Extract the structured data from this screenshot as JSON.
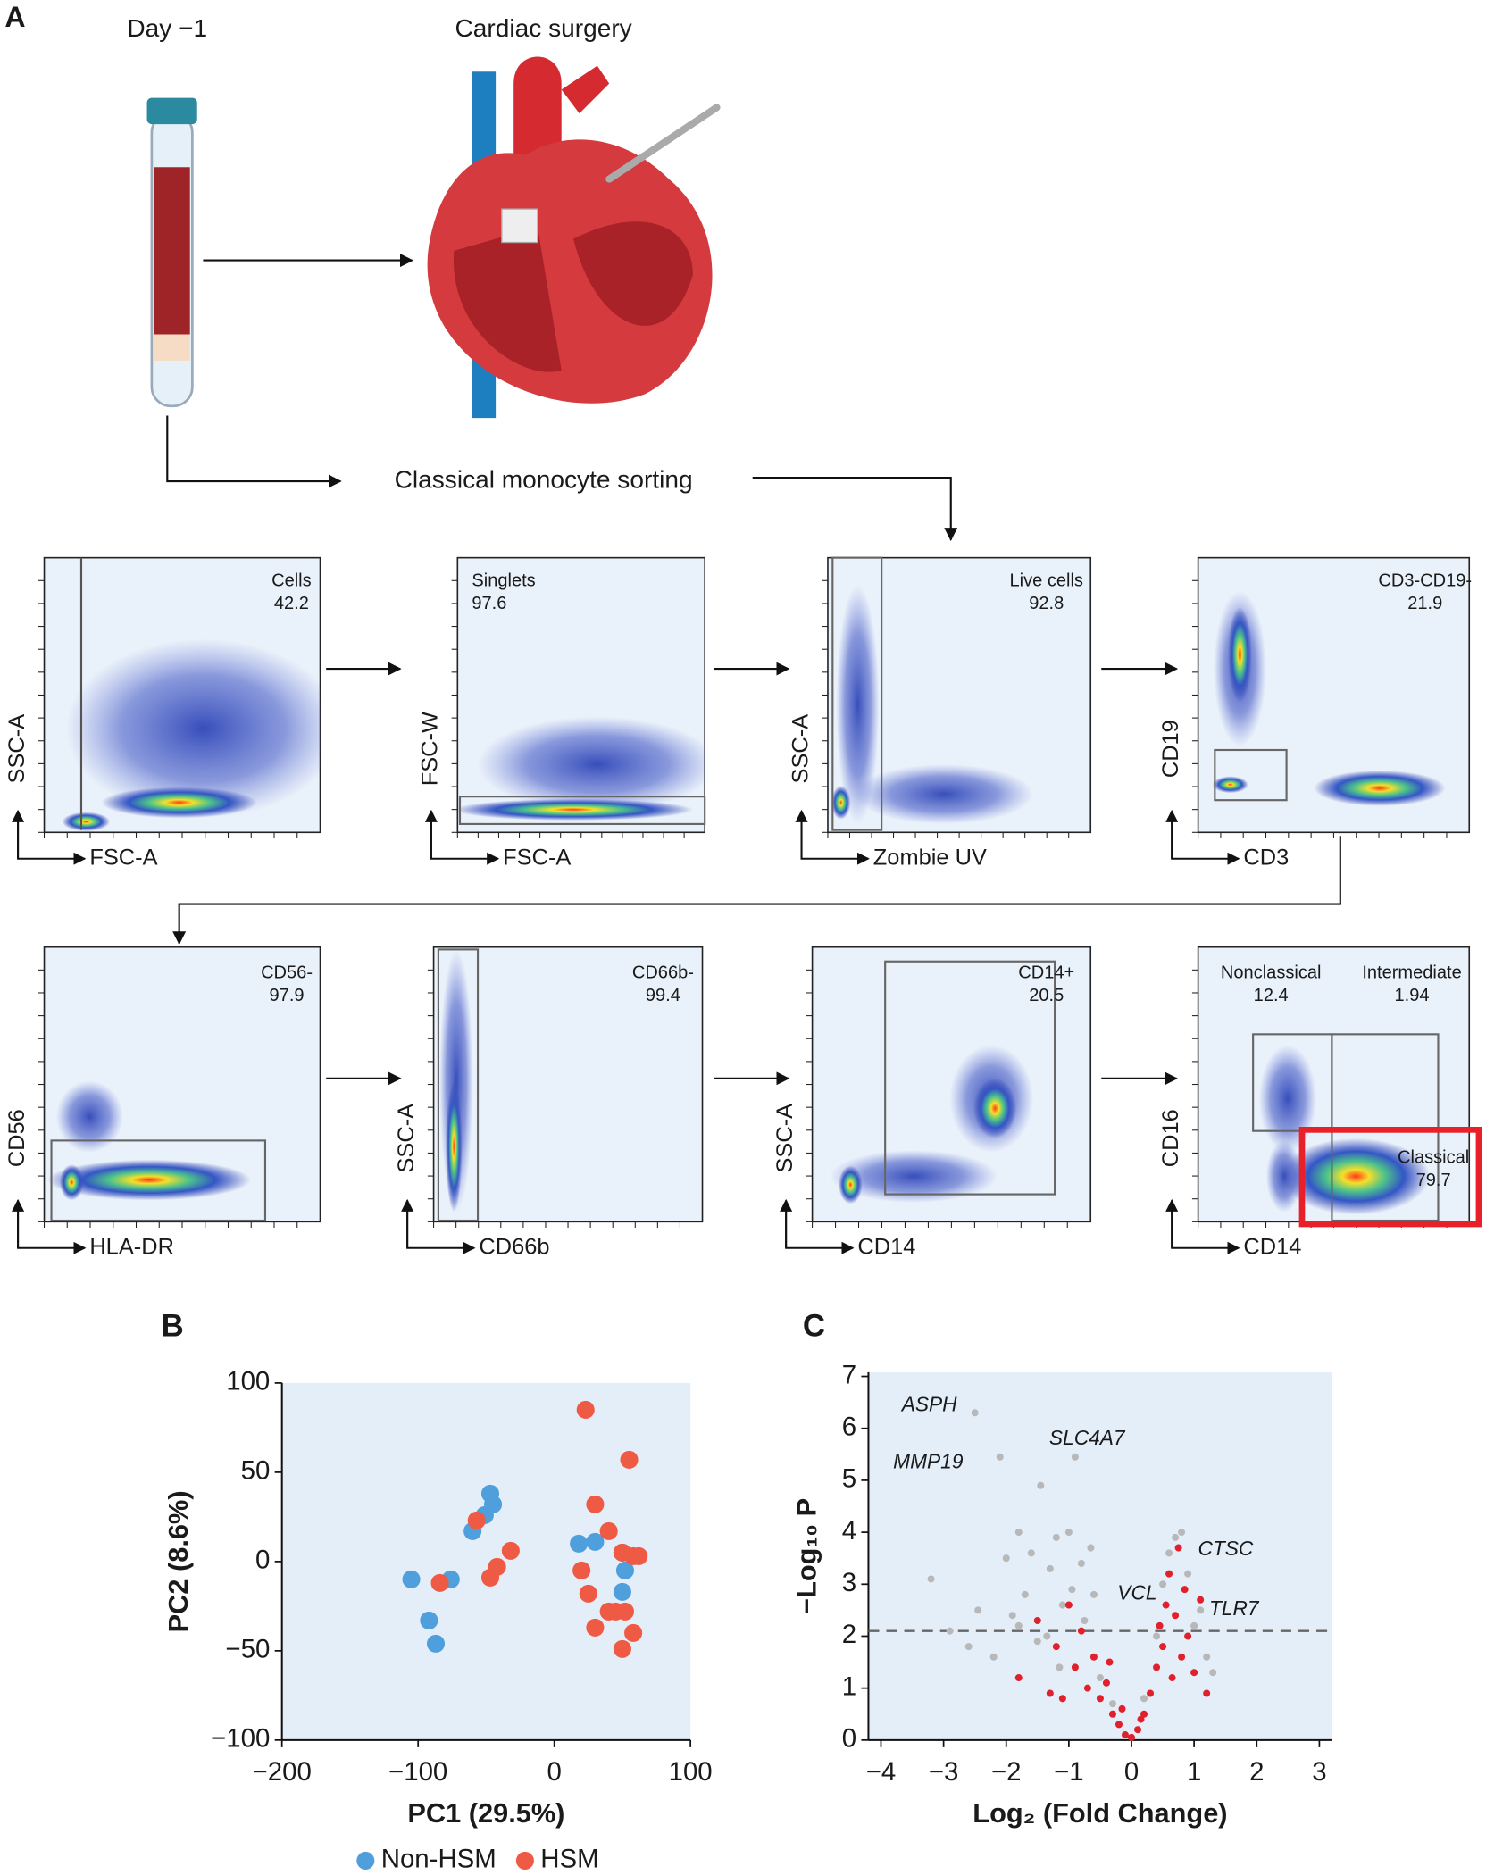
{
  "figure": {
    "panel_a": {
      "label": "A",
      "day": "Day −1",
      "surgery": "Cardiac surgery",
      "sorting": "Classical monocyte sorting",
      "plots": [
        {
          "x_axis": "FSC-A",
          "y_axis": "SSC-A",
          "gates": [
            {
              "name": "Cells",
              "value": 42.2
            }
          ]
        },
        {
          "x_axis": "FSC-A",
          "y_axis": "FSC-W",
          "gates": [
            {
              "name": "Singlets",
              "value": 97.6
            }
          ]
        },
        {
          "x_axis": "Zombie UV",
          "y_axis": "SSC-A",
          "gates": [
            {
              "name": "Live cells",
              "value": 92.8
            }
          ]
        },
        {
          "x_axis": "CD3",
          "y_axis": "CD19",
          "gates": [
            {
              "name": "CD3-CD19-",
              "value": 21.9
            }
          ]
        },
        {
          "x_axis": "HLA-DR",
          "y_axis": "CD56",
          "gates": [
            {
              "name": "CD56-",
              "value": 97.9
            }
          ]
        },
        {
          "x_axis": "CD66b",
          "y_axis": "SSC-A",
          "gates": [
            {
              "name": "CD66b-",
              "value": 99.4
            }
          ]
        },
        {
          "x_axis": "CD14",
          "y_axis": "SSC-A",
          "gates": [
            {
              "name": "CD14+",
              "value": 20.5
            }
          ]
        },
        {
          "x_axis": "CD14",
          "y_axis": "CD16",
          "gates": [
            {
              "name": "Nonclassical",
              "value": 12.4
            },
            {
              "name": "Intermediate",
              "value": 1.94
            },
            {
              "name": "Classical",
              "value": 79.7
            }
          ]
        }
      ]
    }
  },
  "chart_data": [
    {
      "type": "scatter",
      "label": "B",
      "xlabel": "PC1 (29.5%)",
      "ylabel": "PC2 (8.6%)",
      "xlim": [
        -200,
        100
      ],
      "ylim": [
        -100,
        100
      ],
      "xticks": [
        {
          "value": -200,
          "label": "−200"
        },
        {
          "value": -100,
          "label": "−100"
        },
        0,
        100
      ],
      "yticks": [
        {
          "value": -100,
          "label": "−100"
        },
        {
          "value": -50,
          "label": "−50"
        },
        0,
        50,
        100
      ],
      "legend": "bottom",
      "series": [
        {
          "name": "Non-HSM",
          "color": "#4f9fdc",
          "x": [
            -47,
            -45,
            -51,
            -60,
            -105,
            -76,
            -92,
            -87,
            18,
            30,
            50,
            52,
            50
          ],
          "values": [
            38,
            32,
            26,
            17,
            -10,
            -10,
            -33,
            -46,
            10,
            11,
            5,
            -5,
            -17
          ]
        },
        {
          "name": "HSM",
          "color": "#ef5a44",
          "x": [
            23,
            55,
            30,
            40,
            -32,
            -42,
            -47,
            -57,
            -84,
            20,
            25,
            30,
            50,
            58,
            45,
            52,
            58,
            50,
            40,
            62
          ],
          "values": [
            85,
            57,
            32,
            17,
            6,
            -3,
            -9,
            23,
            -12,
            -5,
            -18,
            -37,
            5,
            3,
            -28,
            -28,
            -40,
            -49,
            -28,
            3
          ]
        }
      ]
    },
    {
      "type": "scatter",
      "label": "C",
      "xlabel": "Log₂ (Fold Change)",
      "ylabel": "−Log₁₀ P",
      "xlim": [
        -4.2,
        3.2
      ],
      "ylim": [
        0,
        7.08
      ],
      "xticks": [
        {
          "value": -4,
          "label": "−4"
        },
        {
          "value": -3,
          "label": "−3"
        },
        {
          "value": -2,
          "label": "−2"
        },
        {
          "value": -1,
          "label": "−1"
        },
        0,
        1,
        2,
        3
      ],
      "yticks": [
        0,
        1,
        2,
        3,
        4,
        5,
        6,
        7
      ],
      "threshold": 2.1,
      "annotations": [
        "ASPH",
        "MMP19",
        "SLC4A7",
        "CTSC",
        "VCL",
        "TLR7"
      ],
      "series": [
        {
          "color": "#b8b8b8",
          "x": [
            -3.2,
            -2.9,
            -2.5,
            -2.45,
            -2.1,
            -2.0,
            -1.9,
            -1.8,
            -1.7,
            -1.6,
            -1.5,
            -1.45,
            -1.3,
            -1.2,
            -1.1,
            -1.0,
            -0.95,
            -0.9,
            -0.8,
            -0.75,
            -0.6,
            -0.5,
            -0.3,
            0.2,
            0.4,
            0.5,
            0.6,
            0.7,
            0.8,
            0.9,
            1.0,
            1.2,
            1.3,
            -2.6,
            -1.35,
            -0.65,
            -2.2,
            -1.15,
            1.1,
            -1.8
          ],
          "values": [
            3.1,
            2.1,
            6.3,
            2.5,
            5.45,
            3.5,
            2.4,
            4.0,
            2.8,
            3.6,
            1.9,
            4.9,
            3.3,
            3.9,
            2.6,
            4.0,
            2.9,
            5.45,
            3.4,
            2.3,
            2.8,
            1.2,
            0.7,
            0.8,
            2.0,
            3.0,
            3.6,
            3.9,
            4.0,
            3.2,
            2.2,
            1.6,
            1.3,
            1.8,
            2.0,
            3.7,
            1.6,
            1.4,
            2.5,
            2.2
          ]
        },
        {
          "color": "#e0202a",
          "x": [
            -1.8,
            -1.5,
            -1.3,
            -1.2,
            -1.0,
            -0.9,
            -0.8,
            -0.7,
            -0.6,
            -0.5,
            -0.4,
            -0.3,
            -0.2,
            -0.1,
            0.0,
            0.1,
            0.2,
            0.3,
            0.4,
            0.45,
            0.5,
            0.55,
            0.6,
            0.65,
            0.7,
            0.75,
            0.8,
            0.85,
            0.9,
            1.0,
            1.1,
            -0.15,
            0.15,
            -1.1,
            1.2,
            -0.35
          ],
          "values": [
            1.2,
            2.3,
            0.9,
            1.8,
            2.6,
            1.4,
            2.1,
            1.0,
            1.6,
            0.8,
            1.1,
            0.5,
            0.3,
            0.1,
            0.05,
            0.2,
            0.5,
            0.9,
            1.4,
            2.2,
            1.8,
            2.6,
            3.2,
            1.2,
            2.4,
            3.7,
            1.6,
            2.9,
            2.0,
            1.3,
            2.7,
            0.6,
            0.4,
            0.8,
            0.9,
            1.5
          ]
        }
      ]
    }
  ]
}
